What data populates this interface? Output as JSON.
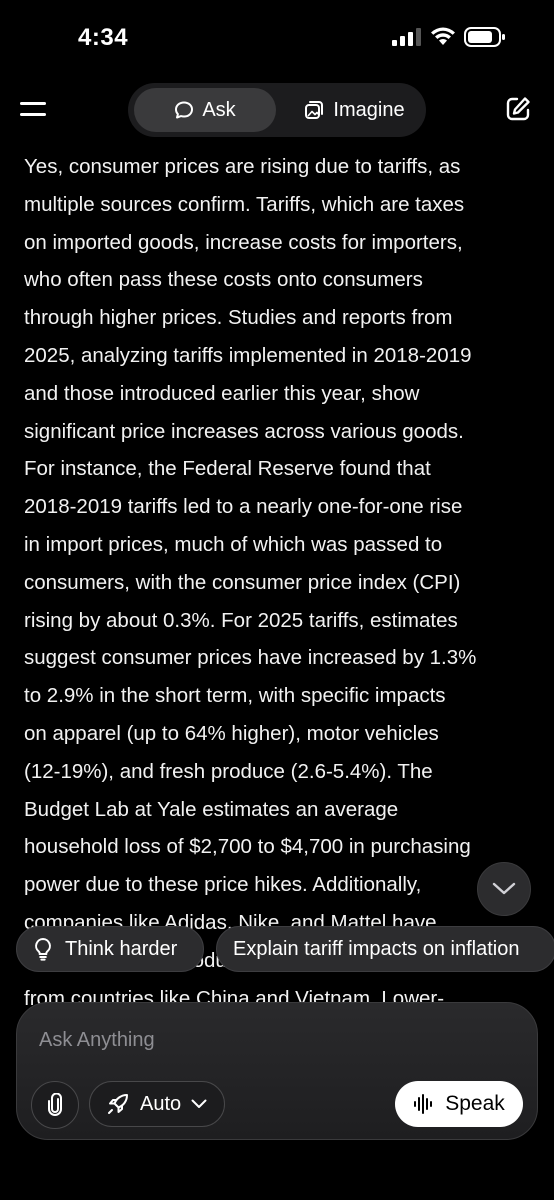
{
  "status": {
    "time": "4:34"
  },
  "header": {
    "tabs": {
      "ask": "Ask",
      "imagine": "Imagine"
    },
    "active_tab": "ask"
  },
  "response": {
    "lines": [
      "Yes, consumer prices are rising due to tariffs, as",
      "multiple sources confirm. Tariffs, which are taxes",
      "on imported goods, increase costs for importers,",
      "who often pass these costs onto consumers",
      "through higher prices. Studies and reports from",
      "2025, analyzing tariffs implemented in 2018-2019",
      "and those introduced earlier this year, show",
      "significant price increases across various goods.",
      "For instance, the Federal Reserve found that",
      "2018-2019 tariffs led to a nearly one-for-one rise",
      "in import prices, much of which was passed to",
      "consumers, with the consumer price index (CPI)",
      "rising by about 0.3%. For 2025 tariffs, estimates",
      "suggest consumer prices have increased by 1.3%",
      "to 2.9% in the short term, with specific impacts",
      "on apparel (up to 64% higher), motor vehicles",
      "(12-19%), and fresh produce (2.6-5.4%). The",
      "Budget Lab at Yale estimates an average",
      "household loss of $2,700 to $4,700 in purchasing",
      "power due to these price hikes. Additionally,",
      "companies like Adidas, Nike, and Mattel have",
      "raised prices on products sourced",
      "from countries like China and Vietnam. Lower-"
    ]
  },
  "suggestions": {
    "think_harder": "Think harder",
    "explain": "Explain tariff impacts on inflation"
  },
  "composer": {
    "placeholder": "Ask Anything",
    "mode_label": "Auto",
    "speak_label": "Speak"
  },
  "colors": {
    "background": "#000000",
    "chip": "#2c2c2e",
    "speak_button": "#ffffff"
  }
}
